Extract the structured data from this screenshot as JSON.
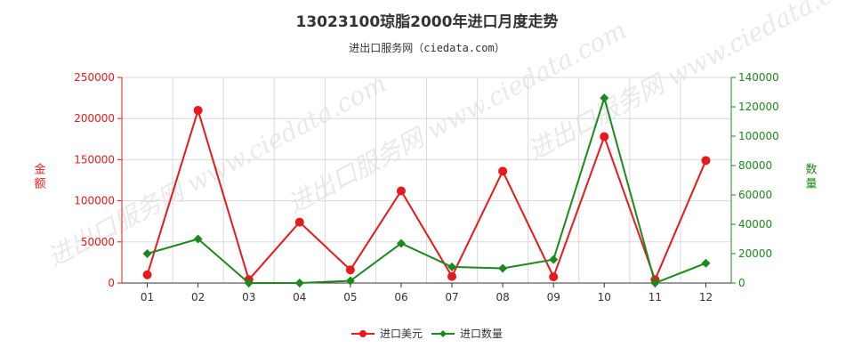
{
  "title": "13023100琼脂2000年进口月度走势",
  "subtitle": "进出口服务网（ciedata.com）",
  "watermark": "进出口服务网 www.ciedata.com",
  "colors": {
    "series_usd": "#e8191a",
    "series_qty": "#1a8a1a",
    "left_axis": "#e8191a",
    "right_axis": "#1a8a1a",
    "grid": "#d9d9d9"
  },
  "chart_data": {
    "type": "line",
    "categories": [
      "01",
      "02",
      "03",
      "04",
      "05",
      "06",
      "07",
      "08",
      "09",
      "10",
      "11",
      "12"
    ],
    "left_axis": {
      "label": "金额",
      "ylim": [
        0,
        250000
      ],
      "ticks": [
        0,
        50000,
        100000,
        150000,
        200000,
        250000
      ]
    },
    "right_axis": {
      "label": "数量",
      "ylim": [
        0,
        140000
      ],
      "ticks": [
        0,
        20000,
        40000,
        60000,
        80000,
        100000,
        120000,
        140000
      ]
    },
    "series": [
      {
        "name": "进口美元",
        "axis": "left",
        "marker": "circle",
        "values": [
          10000,
          210000,
          4000,
          74000,
          16000,
          112000,
          8000,
          136000,
          7500,
          178000,
          4000,
          149000
        ]
      },
      {
        "name": "进口数量",
        "axis": "right",
        "marker": "diamond",
        "values": [
          20000,
          30000,
          0,
          0,
          1500,
          27000,
          11000,
          10000,
          16000,
          126000,
          0,
          13500
        ]
      }
    ],
    "legend_position": "bottom",
    "grid": true
  }
}
